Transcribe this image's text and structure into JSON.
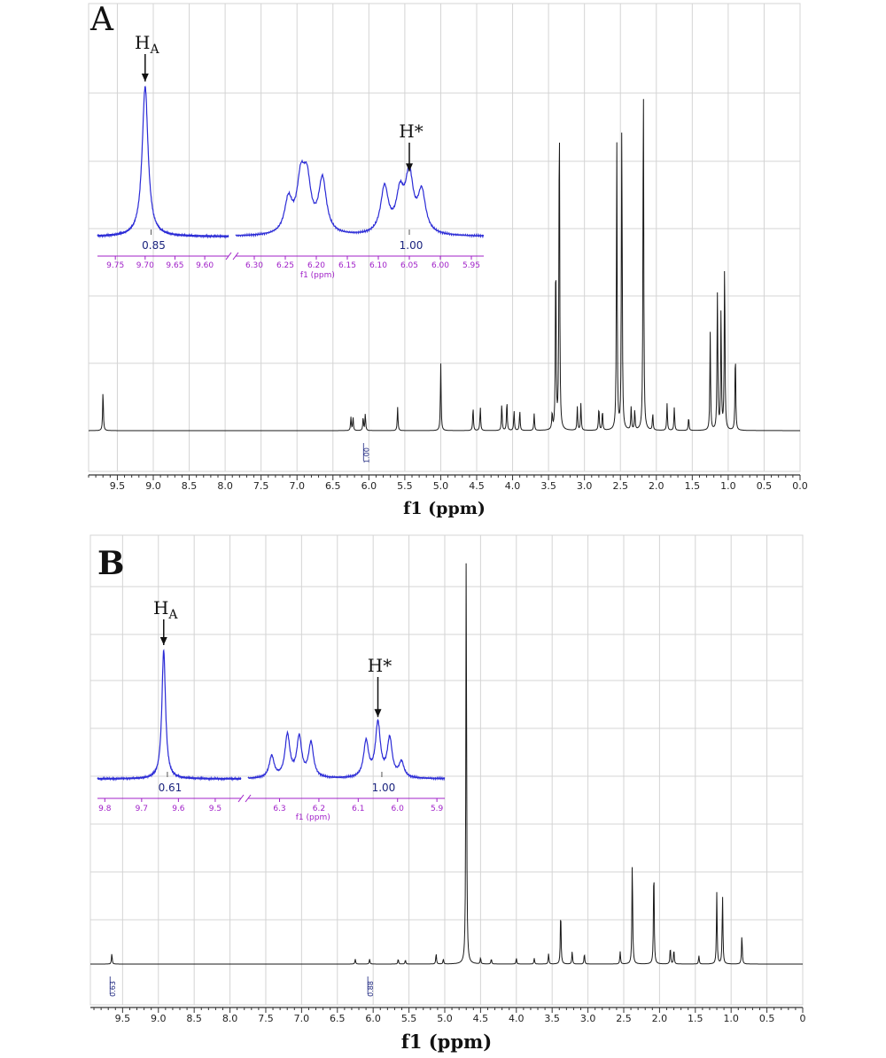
{
  "colors": {
    "main_trace": "#1a1a1a",
    "inset_trace": "#2b2bd6",
    "inset_axis": "#a020c8",
    "integral": "#1a237e",
    "grid": "#d4d4d4",
    "axis": "#333333"
  },
  "chart_data": [
    {
      "type": "line",
      "panel_label": "A",
      "xlabel": "f1 (ppm)",
      "xlim": [
        9.9,
        0.0
      ],
      "x_reversed": true,
      "grid": true,
      "x_ticks": [
        "9.5",
        "9.0",
        "8.5",
        "8.0",
        "7.5",
        "7.0",
        "6.5",
        "6.0",
        "5.5",
        "5.0",
        "4.5",
        "4.0",
        "3.5",
        "3.0",
        "2.5",
        "2.0",
        "1.5",
        "1.0",
        "0.5",
        "0.0"
      ],
      "integrals": [
        {
          "x": 6.05,
          "label": "1.00"
        }
      ],
      "series": [
        {
          "peaks": [
            {
              "x": 9.7,
              "h": 0.12
            },
            {
              "x": 6.25,
              "h": 0.04
            },
            {
              "x": 6.22,
              "h": 0.04
            },
            {
              "x": 6.08,
              "h": 0.04
            },
            {
              "x": 6.05,
              "h": 0.05
            },
            {
              "x": 5.6,
              "h": 0.07
            },
            {
              "x": 5.0,
              "h": 0.2
            },
            {
              "x": 4.55,
              "h": 0.07
            },
            {
              "x": 4.45,
              "h": 0.07
            },
            {
              "x": 4.15,
              "h": 0.08
            },
            {
              "x": 4.08,
              "h": 0.09
            },
            {
              "x": 3.98,
              "h": 0.06
            },
            {
              "x": 3.9,
              "h": 0.06
            },
            {
              "x": 3.7,
              "h": 0.05
            },
            {
              "x": 3.45,
              "h": 0.05
            },
            {
              "x": 3.4,
              "h": 0.54
            },
            {
              "x": 3.35,
              "h": 1.0
            },
            {
              "x": 3.1,
              "h": 0.07
            },
            {
              "x": 3.05,
              "h": 0.08
            },
            {
              "x": 2.8,
              "h": 0.07
            },
            {
              "x": 2.75,
              "h": 0.06
            },
            {
              "x": 2.55,
              "h": 0.86
            },
            {
              "x": 2.48,
              "h": 0.91
            },
            {
              "x": 2.35,
              "h": 0.07
            },
            {
              "x": 2.3,
              "h": 0.06
            },
            {
              "x": 2.18,
              "h": 1.09
            },
            {
              "x": 2.05,
              "h": 0.05
            },
            {
              "x": 1.85,
              "h": 0.08
            },
            {
              "x": 1.75,
              "h": 0.07
            },
            {
              "x": 1.55,
              "h": 0.04
            },
            {
              "x": 1.25,
              "h": 0.29
            },
            {
              "x": 1.15,
              "h": 0.41
            },
            {
              "x": 1.1,
              "h": 0.36
            },
            {
              "x": 1.05,
              "h": 0.51
            },
            {
              "x": 0.9,
              "h": 0.24
            }
          ]
        }
      ],
      "inset": {
        "xlabel": "f1 (ppm)",
        "tick_labels_left": [
          "9.75",
          "9.70",
          "9.65",
          "9.60"
        ],
        "tick_labels_right": [
          "6.30",
          "6.25",
          "6.20",
          "6.15",
          "6.10",
          "6.05",
          "6.00",
          "5.95"
        ],
        "annotations": [
          {
            "label": "H",
            "sub": "A",
            "x": 9.7
          },
          {
            "label": "H*",
            "sub": "",
            "x": 6.05
          }
        ],
        "integrals": [
          {
            "x": 9.69,
            "label": "0.85"
          },
          {
            "x": 6.05,
            "label": "1.00"
          }
        ],
        "peaks_left": [
          {
            "x": 9.7,
            "h": 1.0
          }
        ],
        "peaks_right": [
          {
            "x": 6.245,
            "h": 0.22
          },
          {
            "x": 6.225,
            "h": 0.33
          },
          {
            "x": 6.215,
            "h": 0.32
          },
          {
            "x": 6.19,
            "h": 0.36
          },
          {
            "x": 6.09,
            "h": 0.31
          },
          {
            "x": 6.065,
            "h": 0.25
          },
          {
            "x": 6.05,
            "h": 0.38
          },
          {
            "x": 6.03,
            "h": 0.27
          }
        ]
      }
    },
    {
      "type": "line",
      "panel_label": "B",
      "xlabel": "f1 (ppm)",
      "xlim": [
        9.95,
        0.0
      ],
      "x_reversed": true,
      "grid": true,
      "x_ticks": [
        "9.5",
        "9.0",
        "8.5",
        "8.0",
        "7.5",
        "7.0",
        "6.5",
        "6.0",
        "5.5",
        "5.0",
        "4.5",
        "4.0",
        "3.5",
        "3.0",
        "2.5",
        "2.0",
        "1.5",
        "1.0",
        "0.5",
        "0"
      ],
      "integrals": [
        {
          "x": 9.65,
          "label": "0.63"
        },
        {
          "x": 6.05,
          "label": "0.88"
        }
      ],
      "series": [
        {
          "peaks": [
            {
              "x": 9.65,
              "h": 0.025
            },
            {
              "x": 6.25,
              "h": 0.012
            },
            {
              "x": 6.05,
              "h": 0.012
            },
            {
              "x": 5.65,
              "h": 0.012
            },
            {
              "x": 5.55,
              "h": 0.01
            },
            {
              "x": 5.12,
              "h": 0.025
            },
            {
              "x": 5.02,
              "h": 0.012
            },
            {
              "x": 4.7,
              "h": 1.0
            },
            {
              "x": 4.5,
              "h": 0.015
            },
            {
              "x": 4.35,
              "h": 0.012
            },
            {
              "x": 4.0,
              "h": 0.014
            },
            {
              "x": 3.75,
              "h": 0.014
            },
            {
              "x": 3.55,
              "h": 0.025
            },
            {
              "x": 3.38,
              "h": 0.13
            },
            {
              "x": 3.22,
              "h": 0.03
            },
            {
              "x": 3.05,
              "h": 0.025
            },
            {
              "x": 2.55,
              "h": 0.03
            },
            {
              "x": 2.38,
              "h": 0.25
            },
            {
              "x": 2.08,
              "h": 0.24
            },
            {
              "x": 1.85,
              "h": 0.04
            },
            {
              "x": 1.8,
              "h": 0.035
            },
            {
              "x": 1.45,
              "h": 0.02
            },
            {
              "x": 1.2,
              "h": 0.17
            },
            {
              "x": 1.12,
              "h": 0.16
            },
            {
              "x": 0.85,
              "h": 0.07
            }
          ]
        }
      ],
      "inset": {
        "xlabel": "f1 (ppm)",
        "tick_labels_left": [
          "9.8",
          "9.7",
          "9.6",
          "9.5"
        ],
        "tick_labels_right": [
          "6.3",
          "6.2",
          "6.1",
          "6.0",
          "5.9"
        ],
        "annotations": [
          {
            "label": "H",
            "sub": "A",
            "x": 9.64
          },
          {
            "label": "H*",
            "sub": "",
            "x": 6.05
          }
        ],
        "integrals": [
          {
            "x": 9.63,
            "label": "0.61"
          },
          {
            "x": 6.04,
            "label": "1.00"
          }
        ],
        "peaks_left": [
          {
            "x": 9.64,
            "h": 1.0
          }
        ],
        "peaks_right": [
          {
            "x": 6.32,
            "h": 0.17
          },
          {
            "x": 6.28,
            "h": 0.33
          },
          {
            "x": 6.25,
            "h": 0.31
          },
          {
            "x": 6.22,
            "h": 0.27
          },
          {
            "x": 6.08,
            "h": 0.28
          },
          {
            "x": 6.05,
            "h": 0.42
          },
          {
            "x": 6.02,
            "h": 0.3
          },
          {
            "x": 5.99,
            "h": 0.12
          }
        ]
      }
    }
  ]
}
